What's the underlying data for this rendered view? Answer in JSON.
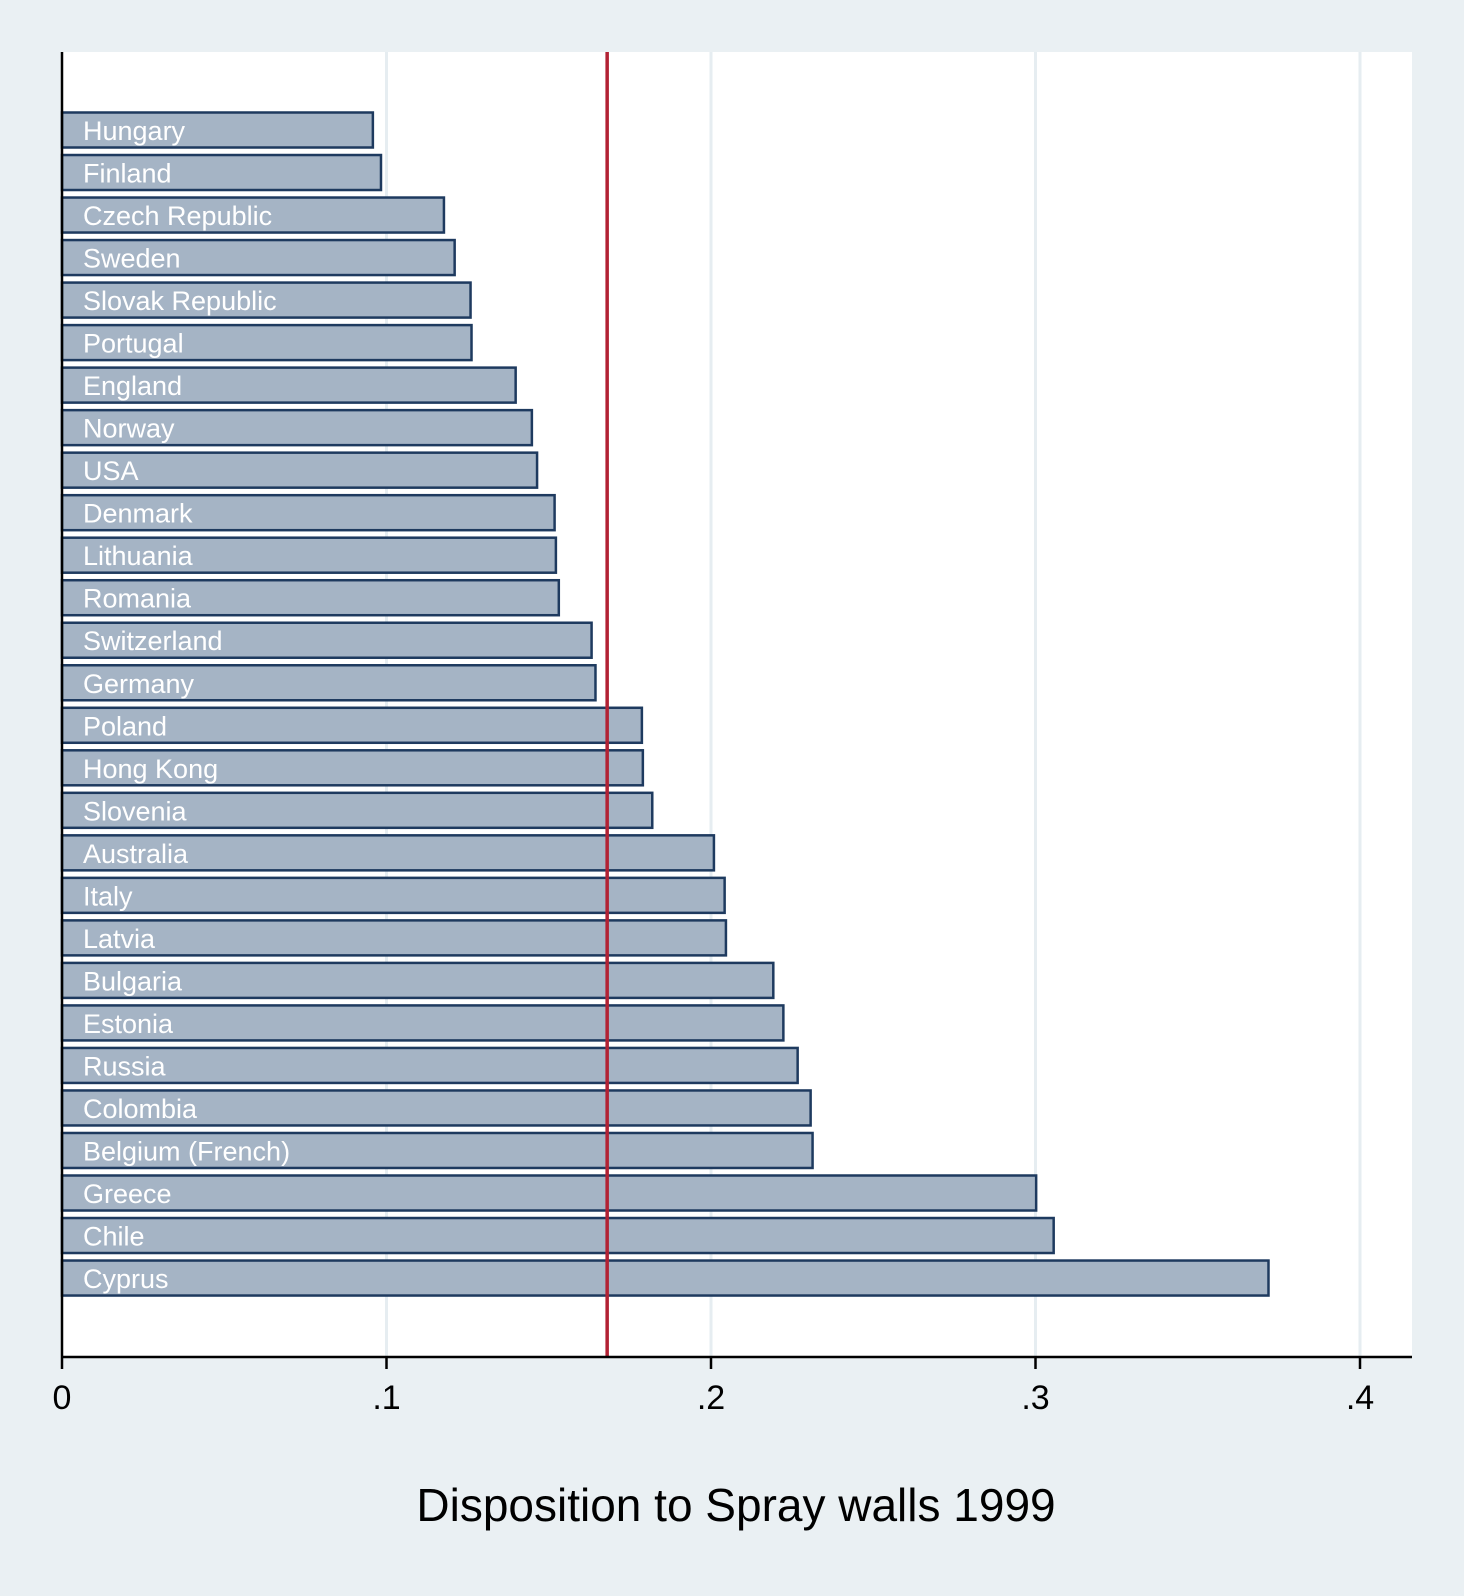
{
  "chart_data": {
    "type": "bar",
    "orientation": "horizontal",
    "categories": [
      "Hungary",
      "Finland",
      "Czech Republic",
      "Sweden",
      "Slovak Republic",
      "Portugal",
      "England",
      "Norway",
      "USA",
      "Denmark",
      "Lithuania",
      "Romania",
      "Switzerland",
      "Germany",
      "Poland",
      "Hong Kong",
      "Slovenia",
      "Australia",
      "Italy",
      "Latvia",
      "Bulgaria",
      "Estonia",
      "Russia",
      "Colombia",
      "Belgium (French)",
      "Greece",
      "Chile",
      "Cyprus"
    ],
    "values": [
      0.0958,
      0.0983,
      0.1177,
      0.121,
      0.1259,
      0.1262,
      0.1398,
      0.1448,
      0.1464,
      0.1518,
      0.1522,
      0.1531,
      0.1632,
      0.1644,
      0.1787,
      0.179,
      0.1819,
      0.2009,
      0.2042,
      0.2046,
      0.2192,
      0.2223,
      0.2267,
      0.2307,
      0.2313,
      0.3002,
      0.3056,
      0.3718
    ],
    "reference_line": 0.168,
    "xlabel": "Disposition to Spray walls 1999",
    "ylabel": "",
    "xlim": [
      0,
      0.4
    ],
    "x_ticks": [
      0,
      0.1,
      0.2,
      0.3,
      0.4
    ],
    "x_tick_labels": [
      "0",
      ".1",
      ".2",
      ".3",
      ".4"
    ],
    "grid": true,
    "colors": {
      "background": "#eaf0f3",
      "plot_background": "#ffffff",
      "bar_fill": "#a5b4c5",
      "bar_edge": "#1e3a5f",
      "reference_line": "#b22234",
      "grid": "#e6edf1"
    }
  }
}
